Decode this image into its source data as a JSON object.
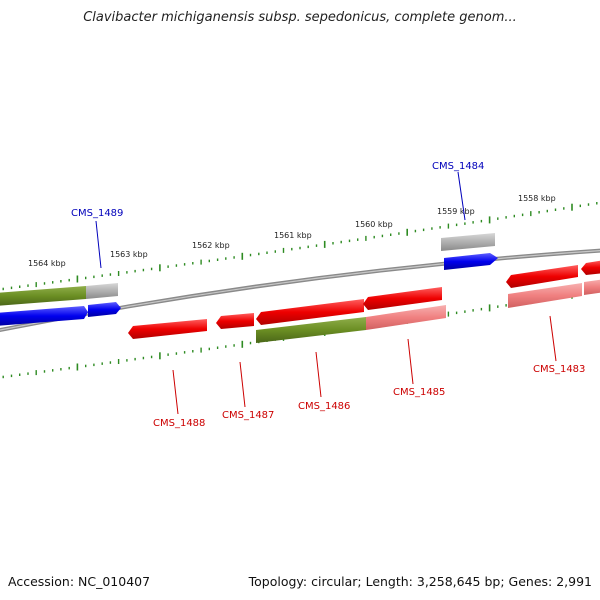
{
  "title": "Clavibacter michiganensis subsp. sepedonicus, complete genom...",
  "footer": {
    "accession": "Accession: NC_010407",
    "summary": "Topology: circular; Length: 3,258,645 bp; Genes: 2,991"
  },
  "colors": {
    "forward_cds": "#0000ee",
    "reverse_cds": "#ee0000",
    "reverse_cds_light": "#f08080",
    "gene": "#6b8e23",
    "gene_light": "#b0b0b0",
    "scale": "#2e8b22",
    "backbone": "#888888",
    "label_forward": "#0000bb",
    "label_reverse": "#cc0000"
  },
  "scale_labels": [
    "1564 kbp",
    "1563 kbp",
    "1562 kbp",
    "1561 kbp",
    "1560 kbp",
    "1559 kbp",
    "1558 kbp"
  ],
  "gene_labels": [
    {
      "name": "CMS_1489",
      "strand": "forward"
    },
    {
      "name": "CMS_1484",
      "strand": "forward"
    },
    {
      "name": "CMS_1488",
      "strand": "reverse"
    },
    {
      "name": "CMS_1487",
      "strand": "reverse"
    },
    {
      "name": "CMS_1486",
      "strand": "reverse"
    },
    {
      "name": "CMS_1485",
      "strand": "reverse"
    },
    {
      "name": "CMS_1483",
      "strand": "reverse"
    }
  ]
}
